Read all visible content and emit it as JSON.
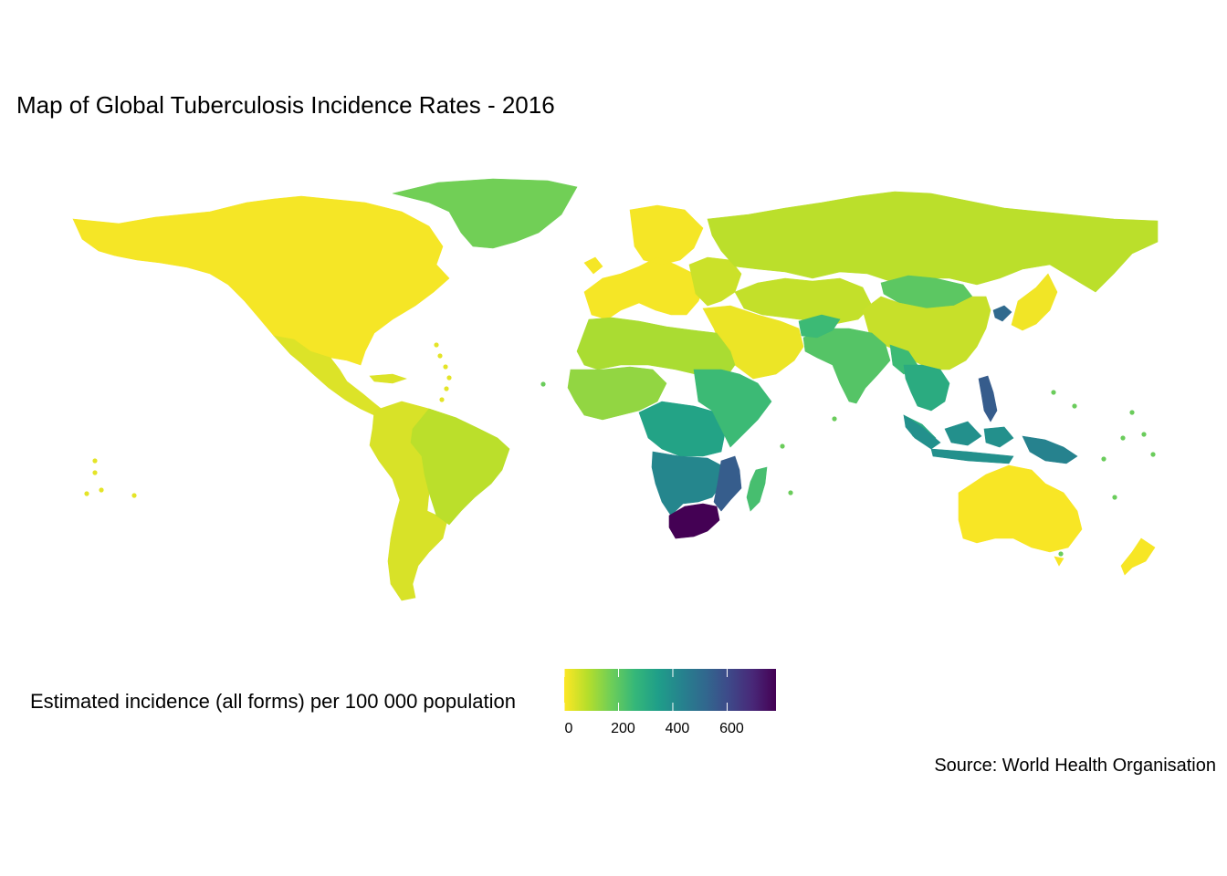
{
  "title": "Map of Global Tuberculosis Incidence Rates - 2016",
  "caption": "Source: World Health Organisation",
  "legend": {
    "title": "Estimated incidence (all forms) per 100 000 population",
    "min": 0,
    "max": 780,
    "ticks": [
      0,
      200,
      400,
      600
    ],
    "tick_labels": [
      "0",
      "200",
      "400",
      "600"
    ],
    "palette": [
      "#fde725",
      "#b5de2b",
      "#6ece58",
      "#35b779",
      "#1f9e89",
      "#26828e",
      "#31688e",
      "#3e4989",
      "#482878",
      "#440154"
    ]
  },
  "regions": [
    {
      "name": "North America",
      "value": 10
    },
    {
      "name": "Greenland",
      "value": 170
    },
    {
      "name": "Central America & Caribbean",
      "value": 40
    },
    {
      "name": "South America",
      "value": 45
    },
    {
      "name": "Brazil",
      "value": 80
    },
    {
      "name": "Western Europe",
      "value": 10
    },
    {
      "name": "Eastern Europe",
      "value": 60
    },
    {
      "name": "Russia",
      "value": 80
    },
    {
      "name": "Central Asia",
      "value": 70
    },
    {
      "name": "Mongolia",
      "value": 200
    },
    {
      "name": "China",
      "value": 65
    },
    {
      "name": "Japan",
      "value": 15
    },
    {
      "name": "North Korea",
      "value": 513
    },
    {
      "name": "Middle East",
      "value": 20
    },
    {
      "name": "North Africa",
      "value": 100
    },
    {
      "name": "West Africa",
      "value": 130
    },
    {
      "name": "Central Africa",
      "value": 330
    },
    {
      "name": "East Africa",
      "value": 250
    },
    {
      "name": "Southern Africa",
      "value": 420
    },
    {
      "name": "Mozambique",
      "value": 550
    },
    {
      "name": "South Africa",
      "value": 781
    },
    {
      "name": "Madagascar",
      "value": 233
    },
    {
      "name": "India",
      "value": 211
    },
    {
      "name": "South Asia",
      "value": 250
    },
    {
      "name": "Southeast Asia",
      "value": 300
    },
    {
      "name": "Philippines",
      "value": 554
    },
    {
      "name": "Indonesia",
      "value": 391
    },
    {
      "name": "Papua New Guinea",
      "value": 432
    },
    {
      "name": "Australia",
      "value": 6
    },
    {
      "name": "New Zealand",
      "value": 7
    }
  ]
}
